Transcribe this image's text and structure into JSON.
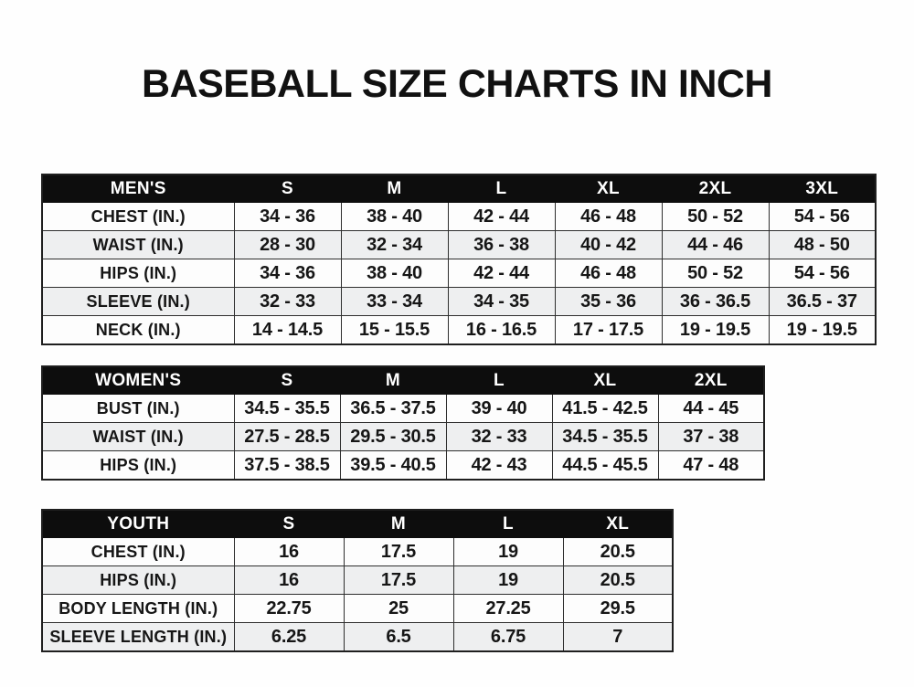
{
  "page": {
    "title": "BASEBALL SIZE CHARTS IN INCH"
  },
  "colors": {
    "header_bg": "#0d0d0d",
    "header_text": "#ffffff",
    "row_bg": "#fdfdfd",
    "row_alt_bg": "#eeeff0",
    "border": "#2e2e2e",
    "text": "#161616"
  },
  "chart_data": [
    {
      "id": "mens",
      "type": "table",
      "title": "MEN'S",
      "header": [
        "MEN'S",
        "S",
        "M",
        "L",
        "XL",
        "2XL",
        "3XL"
      ],
      "rows": [
        [
          "CHEST (IN.)",
          "34 - 36",
          "38 - 40",
          "42 - 44",
          "46 - 48",
          "50 - 52",
          "54 - 56"
        ],
        [
          "WAIST (IN.)",
          "28 - 30",
          "32 - 34",
          "36 - 38",
          "40 - 42",
          "44 - 46",
          "48 - 50"
        ],
        [
          "HIPS (IN.)",
          "34 - 36",
          "38 - 40",
          "42 - 44",
          "46 - 48",
          "50 - 52",
          "54 - 56"
        ],
        [
          "SLEEVE (IN.)",
          "32 - 33",
          "33 - 34",
          "34 - 35",
          "35 - 36",
          "36 - 36.5",
          "36.5 - 37"
        ],
        [
          "NECK (IN.)",
          "14 - 14.5",
          "15 - 15.5",
          "16 - 16.5",
          "17 - 17.5",
          "19 - 19.5",
          "19 - 19.5"
        ]
      ]
    },
    {
      "id": "womens",
      "type": "table",
      "title": "WOMEN'S",
      "header": [
        "WOMEN'S",
        "S",
        "M",
        "L",
        "XL",
        "2XL"
      ],
      "rows": [
        [
          "BUST (IN.)",
          "34.5 - 35.5",
          "36.5 - 37.5",
          "39 - 40",
          "41.5 - 42.5",
          "44 - 45"
        ],
        [
          "WAIST (IN.)",
          "27.5 - 28.5",
          "29.5 - 30.5",
          "32 - 33",
          "34.5 - 35.5",
          "37 - 38"
        ],
        [
          "HIPS (IN.)",
          "37.5 - 38.5",
          "39.5 - 40.5",
          "42 - 43",
          "44.5 - 45.5",
          "47 - 48"
        ]
      ]
    },
    {
      "id": "youth",
      "type": "table",
      "title": "YOUTH",
      "header": [
        "YOUTH",
        "S",
        "M",
        "L",
        "XL"
      ],
      "rows": [
        [
          "CHEST (IN.)",
          "16",
          "17.5",
          "19",
          "20.5"
        ],
        [
          "HIPS (IN.)",
          "16",
          "17.5",
          "19",
          "20.5"
        ],
        [
          "BODY LENGTH (IN.)",
          "22.75",
          "25",
          "27.25",
          "29.5"
        ],
        [
          "SLEEVE LENGTH (IN.)",
          "6.25",
          "6.5",
          "6.75",
          "7"
        ]
      ]
    }
  ]
}
